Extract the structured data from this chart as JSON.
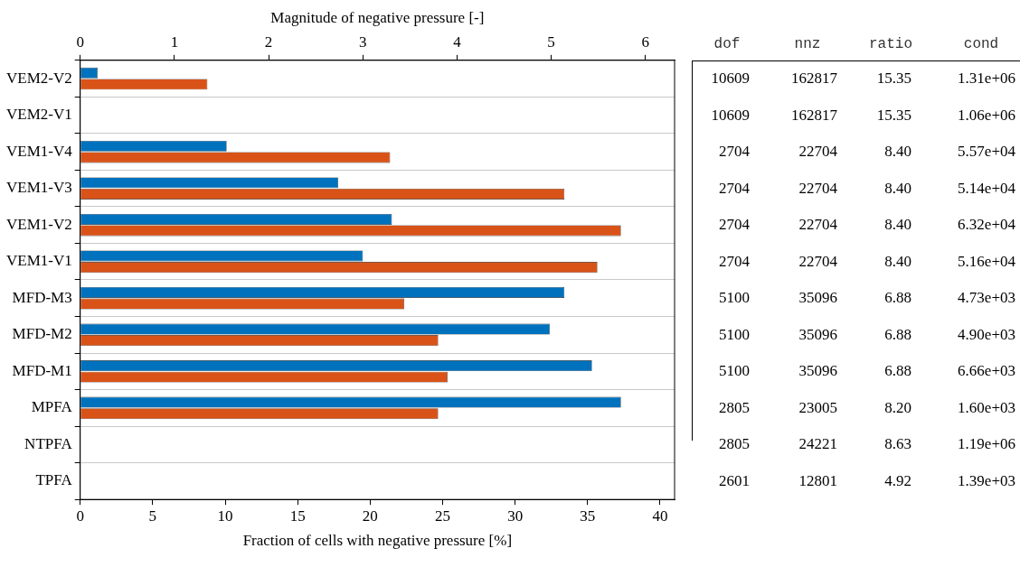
{
  "chart_data": [
    {
      "type": "bar",
      "orientation": "horizontal",
      "categories": [
        "VEM2-V2",
        "VEM2-V1",
        "VEM1-V4",
        "VEM1-V3",
        "VEM1-V2",
        "VEM1-V1",
        "MFD-M3",
        "MFD-M2",
        "MFD-M1",
        "MPFA",
        "NTPFA",
        "TPFA"
      ],
      "series": [
        {
          "color": "#0072bd",
          "values": [
            1.2,
            0,
            10.1,
            17.8,
            21.5,
            19.5,
            33.4,
            32.4,
            35.3,
            37.3,
            0,
            0
          ]
        },
        {
          "color": "#d95319",
          "axis": "x2",
          "values": [
            1.35,
            0,
            3.29,
            5.14,
            5.74,
            5.49,
            3.44,
            3.8,
            3.9,
            3.8,
            0,
            0
          ]
        }
      ],
      "xlabel": "Fraction of cells with negative pressure [%]",
      "x2label": "Magnitude of negative pressure [-]",
      "xlim": [
        0,
        41
      ],
      "xticks": [
        0,
        5,
        10,
        15,
        20,
        25,
        30,
        35,
        40
      ],
      "x2lim": [
        0,
        6.31
      ],
      "x2ticks": [
        0,
        1,
        2,
        3,
        4,
        5,
        6
      ],
      "grid": "y"
    },
    {
      "type": "other",
      "categories": [
        "dof",
        "nnz",
        "ratio",
        "cond"
      ],
      "cell_labels": [
        [
          "10609",
          "162817",
          "15.35",
          "1.31e+06"
        ],
        [
          "10609",
          "162817",
          "15.35",
          "1.06e+06"
        ],
        [
          "2704",
          "22704",
          "8.40",
          "5.57e+04"
        ],
        [
          "2704",
          "22704",
          "8.40",
          "5.14e+04"
        ],
        [
          "2704",
          "22704",
          "8.40",
          "6.32e+04"
        ],
        [
          "2704",
          "22704",
          "8.40",
          "5.16e+04"
        ],
        [
          "5100",
          "35096",
          "6.88",
          "4.73e+03"
        ],
        [
          "5100",
          "35096",
          "6.88",
          "4.90e+03"
        ],
        [
          "5100",
          "35096",
          "6.88",
          "6.66e+03"
        ],
        [
          "2805",
          "23005",
          "8.20",
          "1.60e+03"
        ],
        [
          "2805",
          "24221",
          "8.63",
          "1.19e+06"
        ],
        [
          "2601",
          "12801",
          "4.92",
          "1.39e+03"
        ]
      ]
    }
  ]
}
